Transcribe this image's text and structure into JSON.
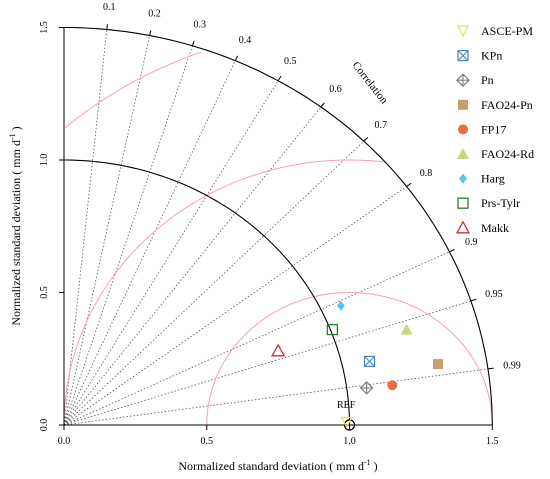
{
  "chart_data": {
    "type": "taylor",
    "xlabel": "Normalized standard deviation",
    "xlabel_unit": "( mm d",
    "xlabel_unit_sup": "-1",
    "xlabel_unit_end": " )",
    "ylabel": "Normalized standard deviation",
    "ylabel_unit": "( mm d",
    "ylabel_unit_sup": "-1",
    "ylabel_unit_end": " )",
    "correlation_label": "Correlation",
    "ref_label": "REF",
    "sd_max": 1.5,
    "x_ticks": [
      "0.0",
      "0.5",
      "1.0",
      "1.5"
    ],
    "y_ticks": [
      "0.0",
      "0.5",
      "1.0",
      "1.5"
    ],
    "correlation_ticks": [
      "0.1",
      "0.2",
      "0.3",
      "0.4",
      "0.5",
      "0.6",
      "0.7",
      "0.8",
      "0.9",
      "0.95",
      "0.99"
    ],
    "rms_circles": [
      0.5,
      1.0,
      1.5
    ],
    "series": [
      {
        "name": "ASCE-PM",
        "marker": "triangle-down",
        "color": "#e8e070",
        "x": 0.99,
        "y": 0.01
      },
      {
        "name": "KPn",
        "marker": "square-x",
        "color": "#4a86c8",
        "x": 1.07,
        "y": 0.24
      },
      {
        "name": "Pn",
        "marker": "diamond-plus",
        "color": "#808080",
        "x": 1.06,
        "y": 0.14
      },
      {
        "name": "FAO24-Pn",
        "marker": "square-filled",
        "color": "#c8a070",
        "x": 1.31,
        "y": 0.23
      },
      {
        "name": "FP17",
        "marker": "circle-filled",
        "color": "#ee6a40",
        "x": 1.15,
        "y": 0.15
      },
      {
        "name": "FAO24-Rd",
        "marker": "triangle-filled",
        "color": "#c8d880",
        "x": 1.2,
        "y": 0.36
      },
      {
        "name": "Harg",
        "marker": "diamond-filled",
        "color": "#56c8f0",
        "x": 0.97,
        "y": 0.45
      },
      {
        "name": "Prs-Tylr",
        "marker": "square-open",
        "color": "#2e7d32",
        "x": 0.94,
        "y": 0.36
      },
      {
        "name": "Makk",
        "marker": "triangle-open",
        "color": "#d03030",
        "x": 0.75,
        "y": 0.28
      }
    ]
  }
}
